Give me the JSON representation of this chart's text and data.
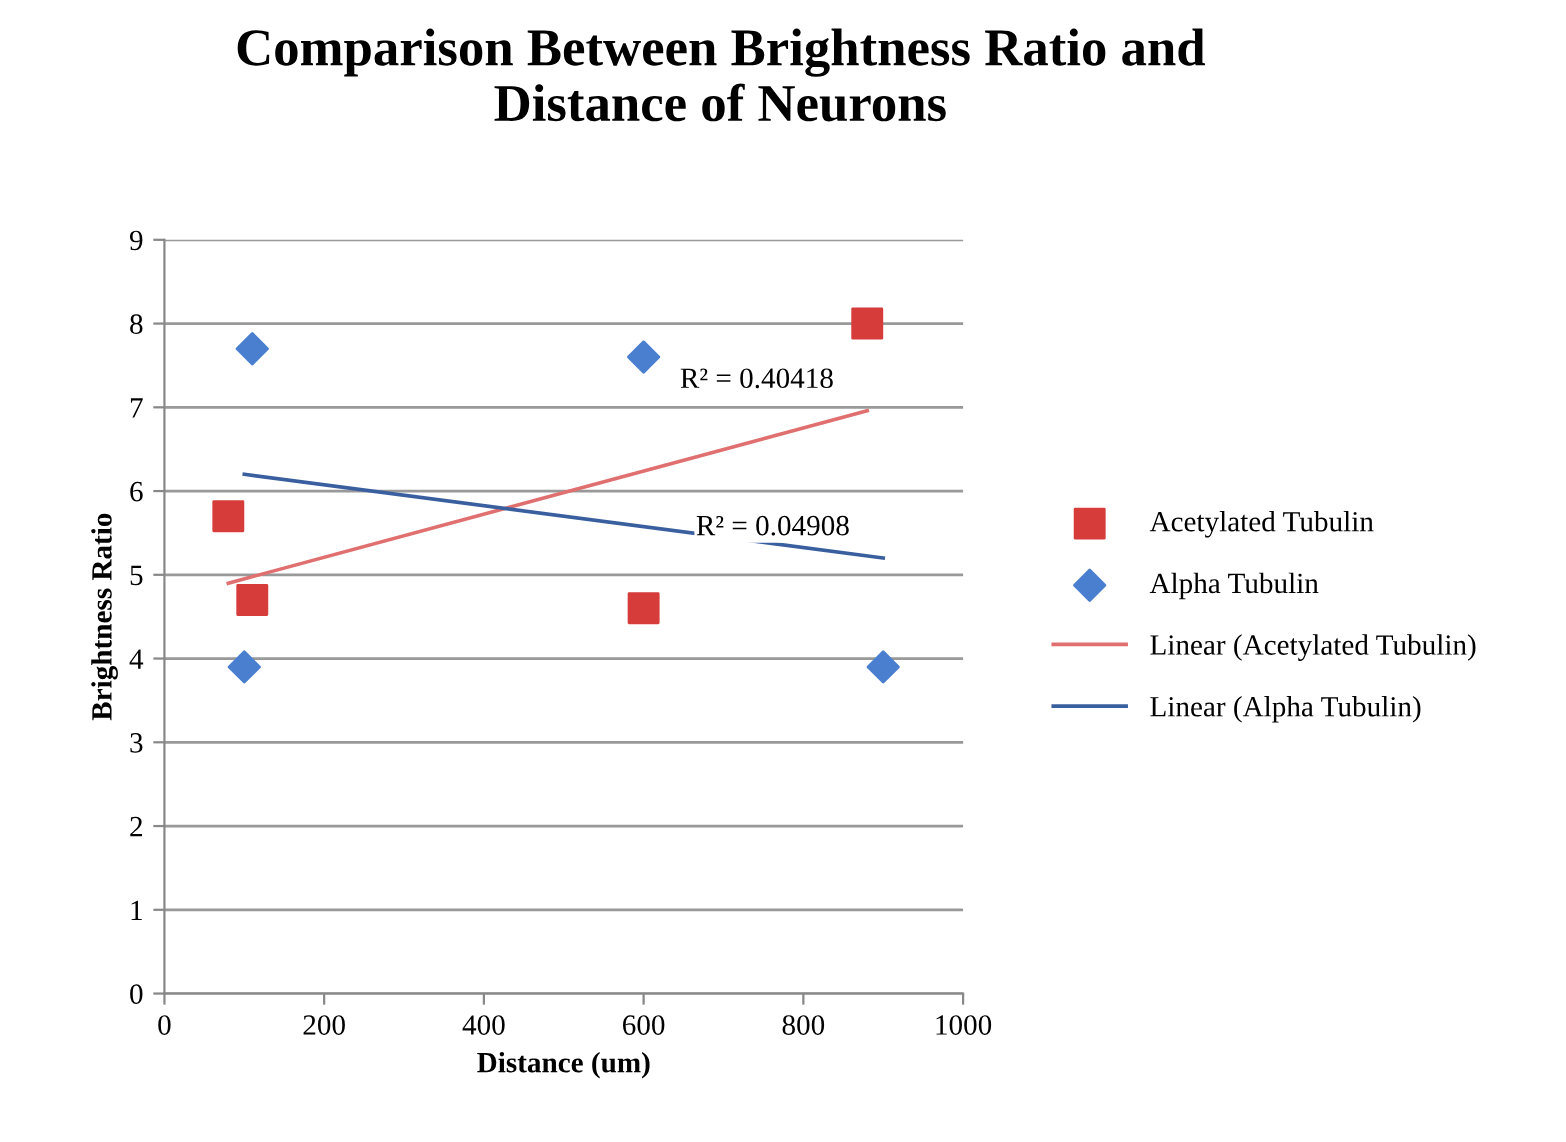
{
  "chart_data": {
    "type": "scatter",
    "title": "Comparison Between Brightness Ratio and\nDistance of Neurons",
    "xlabel": "Distance (um)",
    "ylabel": "Brightness Ratio",
    "series": [
      {
        "name": "Acetylated Tubulin",
        "marker": "square",
        "color": "#d63c3a",
        "x": [
          80,
          110,
          600,
          880
        ],
        "values": [
          5.7,
          4.7,
          4.6,
          8.0
        ]
      },
      {
        "name": "Alpha Tubulin",
        "marker": "diamond",
        "color": "#4a7fd0",
        "x": [
          100,
          110,
          600,
          900
        ],
        "values": [
          3.9,
          7.7,
          7.6,
          3.9
        ]
      },
      {
        "name": "Linear (Acetylated Tubulin)",
        "type": "line",
        "marker": "none",
        "color": "#e07070",
        "x": [
          80,
          880
        ],
        "values": [
          4.9,
          6.96
        ]
      },
      {
        "name": "Linear (Alpha Tubulin)",
        "type": "line",
        "marker": "none",
        "color": "#3a5f9f",
        "x": [
          100,
          900
        ],
        "values": [
          6.2,
          5.2
        ]
      }
    ],
    "annotations": [
      "R² = 0.40418",
      "R² = 0.04908"
    ],
    "xlim": [
      0,
      1000
    ],
    "xticks": [
      0,
      200,
      400,
      600,
      800,
      1000
    ],
    "ylim": [
      0,
      9
    ],
    "yticks": [
      0,
      1,
      2,
      3,
      4,
      5,
      6,
      7,
      8,
      9
    ],
    "grid": "y",
    "legend": "right"
  }
}
